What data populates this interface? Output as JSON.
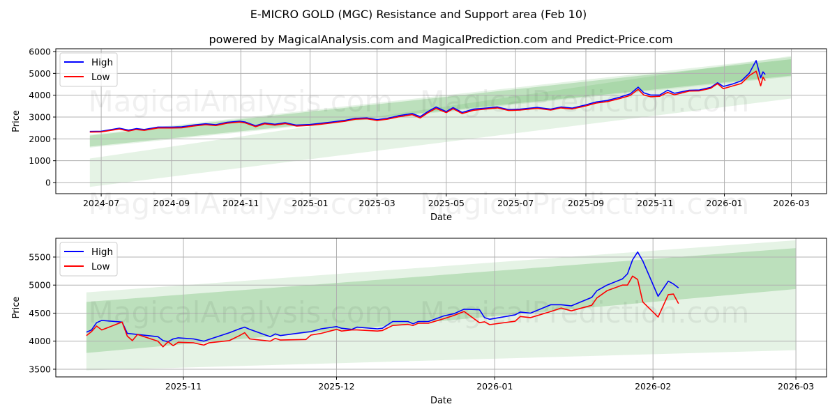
{
  "title": "E-MICRO GOLD (MGC) Resistance and Support area (Feb 10)",
  "subtitle": "powered by MagicalAnalysis.com and MagicalPrediction.com and Predict-Price.com",
  "watermarks": [
    "MagicalAnalysis.com",
    "MagicalPrediction.com"
  ],
  "colors": {
    "high": "#0000ff",
    "low": "#ff0000",
    "band": "#2ca02c",
    "grid": "#b0b0b0"
  },
  "chart_data": [
    {
      "type": "line",
      "title": "",
      "xlabel": "Date",
      "ylabel": "Price",
      "xlim": [
        "2024-05-22",
        "2026-04-01"
      ],
      "ylim": [
        -510,
        6128
      ],
      "grid": true,
      "legend": {
        "position": "top-left",
        "entries": [
          "High",
          "Low"
        ]
      },
      "xticks": [
        "2024-07",
        "2024-09",
        "2024-11",
        "2025-01",
        "2025-03",
        "2025-05",
        "2025-07",
        "2025-09",
        "2025-11",
        "2026-01",
        "2026-03"
      ],
      "yticks": [
        0,
        1000,
        2000,
        3000,
        4000,
        5000,
        6000
      ],
      "bands": [
        {
          "start": "2024-06-21",
          "end": "2026-03-01",
          "upper": [
            1100,
            5800
          ],
          "lower": [
            -200,
            3850
          ],
          "shade": "light"
        },
        {
          "start": "2024-06-21",
          "end": "2026-03-01",
          "upper": [
            2200,
            5750
          ],
          "lower": [
            1600,
            4850
          ],
          "shade": "light"
        },
        {
          "start": "2024-06-21",
          "end": "2026-03-01",
          "upper": [
            2150,
            5650
          ],
          "lower": [
            1650,
            4900
          ],
          "shade": "medium"
        }
      ],
      "x": [
        "2024-06-21",
        "2024-07-01",
        "2024-07-17",
        "2024-07-25",
        "2024-08-01",
        "2024-08-08",
        "2024-08-20",
        "2024-09-01",
        "2024-09-10",
        "2024-09-20",
        "2024-10-01",
        "2024-10-10",
        "2024-10-20",
        "2024-10-31",
        "2024-11-05",
        "2024-11-14",
        "2024-11-22",
        "2024-12-01",
        "2024-12-10",
        "2024-12-20",
        "2025-01-01",
        "2025-01-10",
        "2025-01-20",
        "2025-02-01",
        "2025-02-10",
        "2025-02-20",
        "2025-03-01",
        "2025-03-10",
        "2025-03-20",
        "2025-04-01",
        "2025-04-08",
        "2025-04-15",
        "2025-04-22",
        "2025-05-01",
        "2025-05-07",
        "2025-05-15",
        "2025-05-25",
        "2025-06-05",
        "2025-06-15",
        "2025-06-25",
        "2025-07-05",
        "2025-07-20",
        "2025-08-01",
        "2025-08-10",
        "2025-08-20",
        "2025-09-01",
        "2025-09-10",
        "2025-09-20",
        "2025-10-01",
        "2025-10-10",
        "2025-10-17",
        "2025-10-22",
        "2025-10-28",
        "2025-11-05",
        "2025-11-12",
        "2025-11-18",
        "2025-12-01",
        "2025-12-10",
        "2025-12-20",
        "2025-12-26",
        "2025-12-31",
        "2026-01-08",
        "2026-01-16",
        "2026-01-23",
        "2026-01-29",
        "2026-02-02",
        "2026-02-04",
        "2026-02-06"
      ],
      "series": [
        {
          "name": "High",
          "values": [
            2340,
            2350,
            2490,
            2400,
            2470,
            2430,
            2540,
            2540,
            2550,
            2630,
            2690,
            2650,
            2760,
            2810,
            2770,
            2600,
            2730,
            2670,
            2740,
            2630,
            2660,
            2710,
            2770,
            2850,
            2940,
            2960,
            2880,
            2940,
            3060,
            3160,
            3020,
            3260,
            3460,
            3250,
            3430,
            3210,
            3360,
            3410,
            3460,
            3340,
            3360,
            3440,
            3360,
            3460,
            3410,
            3560,
            3690,
            3760,
            3910,
            4060,
            4370,
            4110,
            4010,
            4010,
            4230,
            4090,
            4230,
            4240,
            4360,
            4570,
            4400,
            4510,
            4660,
            5010,
            5590,
            4800,
            5070,
            4950
          ]
        },
        {
          "name": "Low",
          "values": [
            2310,
            2320,
            2450,
            2360,
            2430,
            2390,
            2500,
            2500,
            2510,
            2590,
            2650,
            2610,
            2720,
            2770,
            2730,
            2560,
            2690,
            2630,
            2700,
            2590,
            2620,
            2670,
            2730,
            2810,
            2900,
            2920,
            2840,
            2900,
            3010,
            3110,
            2960,
            3200,
            3400,
            3200,
            3380,
            3160,
            3310,
            3370,
            3420,
            3300,
            3320,
            3400,
            3320,
            3420,
            3370,
            3510,
            3640,
            3710,
            3850,
            3990,
            4270,
            4010,
            3930,
            3950,
            4130,
            4020,
            4190,
            4200,
            4320,
            4530,
            4300,
            4420,
            4540,
            4900,
            5100,
            4430,
            4830,
            4670
          ]
        }
      ]
    },
    {
      "type": "line",
      "title": "",
      "xlabel": "Date",
      "ylabel": "Price",
      "xlim": [
        "2025-10-07",
        "2026-03-07"
      ],
      "ylim": [
        3363,
        5835
      ],
      "grid": true,
      "legend": {
        "position": "top-left",
        "entries": [
          "High",
          "Low"
        ]
      },
      "xticks": [
        "2025-11",
        "2025-12",
        "2026-01",
        "2026-02",
        "2026-03"
      ],
      "yticks": [
        3500,
        4000,
        4500,
        5000,
        5500
      ],
      "bands": [
        {
          "start": "2025-10-13",
          "end": "2026-03-01",
          "upper": [
            4870,
            5800
          ],
          "lower": [
            3480,
            3840
          ],
          "shade": "light"
        },
        {
          "start": "2025-10-13",
          "end": "2026-03-01",
          "upper": [
            4700,
            5660
          ],
          "lower": [
            3790,
            4930
          ],
          "shade": "medium"
        }
      ],
      "x": [
        "2025-10-13",
        "2025-10-14",
        "2025-10-15",
        "2025-10-16",
        "2025-10-20",
        "2025-10-21",
        "2025-10-22",
        "2025-10-23",
        "2025-10-27",
        "2025-10-28",
        "2025-10-29",
        "2025-10-30",
        "2025-10-31",
        "2025-11-03",
        "2025-11-05",
        "2025-11-06",
        "2025-11-10",
        "2025-11-12",
        "2025-11-13",
        "2025-11-14",
        "2025-11-18",
        "2025-11-19",
        "2025-11-20",
        "2025-11-25",
        "2025-11-26",
        "2025-11-28",
        "2025-12-01",
        "2025-12-02",
        "2025-12-04",
        "2025-12-05",
        "2025-12-09",
        "2025-12-10",
        "2025-12-12",
        "2025-12-15",
        "2025-12-16",
        "2025-12-17",
        "2025-12-19",
        "2025-12-22",
        "2025-12-24",
        "2025-12-26",
        "2025-12-29",
        "2025-12-30",
        "2025-12-31",
        "2026-01-05",
        "2026-01-06",
        "2026-01-08",
        "2026-01-12",
        "2026-01-14",
        "2026-01-16",
        "2026-01-20",
        "2026-01-21",
        "2026-01-23",
        "2026-01-26",
        "2026-01-27",
        "2026-01-28",
        "2026-01-29",
        "2026-01-30",
        "2026-02-02",
        "2026-02-04",
        "2026-02-05",
        "2026-02-06"
      ],
      "series": [
        {
          "name": "High",
          "values": [
            4160,
            4200,
            4330,
            4370,
            4340,
            4140,
            4130,
            4120,
            4080,
            4010,
            3990,
            4040,
            4060,
            4040,
            4000,
            4030,
            4150,
            4220,
            4250,
            4210,
            4080,
            4130,
            4100,
            4160,
            4170,
            4220,
            4260,
            4230,
            4210,
            4250,
            4220,
            4230,
            4350,
            4350,
            4310,
            4350,
            4350,
            4450,
            4490,
            4570,
            4560,
            4420,
            4390,
            4470,
            4520,
            4500,
            4650,
            4650,
            4630,
            4780,
            4900,
            5000,
            5110,
            5200,
            5450,
            5590,
            5430,
            4800,
            5070,
            5020,
            4950
          ]
        },
        {
          "name": "Low",
          "values": [
            4100,
            4170,
            4270,
            4200,
            4340,
            4090,
            4010,
            4120,
            4000,
            3900,
            3990,
            3920,
            3980,
            3970,
            3930,
            3970,
            4010,
            4100,
            4150,
            4040,
            4000,
            4050,
            4020,
            4030,
            4110,
            4140,
            4210,
            4180,
            4200,
            4200,
            4180,
            4190,
            4280,
            4300,
            4280,
            4320,
            4320,
            4400,
            4460,
            4530,
            4330,
            4345,
            4295,
            4355,
            4440,
            4420,
            4530,
            4590,
            4540,
            4640,
            4770,
            4900,
            5000,
            5000,
            5160,
            5100,
            4700,
            4430,
            4830,
            4840,
            4670
          ]
        }
      ]
    }
  ]
}
